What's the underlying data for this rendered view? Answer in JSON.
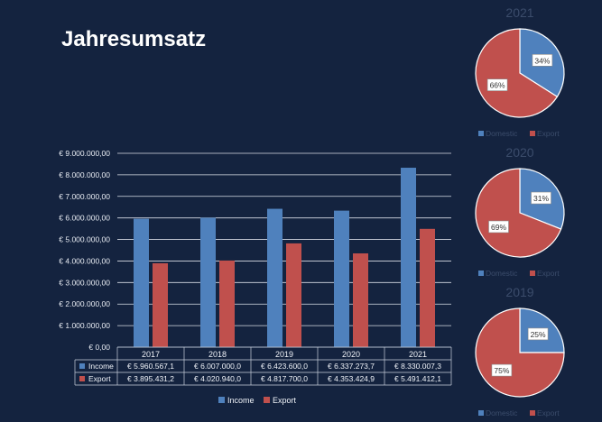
{
  "page": {
    "title": "Jahresumsatz"
  },
  "chart_data": [
    {
      "type": "bar",
      "title": "",
      "xlabel": "",
      "ylabel": "",
      "categories": [
        "2017",
        "2018",
        "2019",
        "2020",
        "2021"
      ],
      "ylim": [
        0,
        9000000
      ],
      "yticks": [
        "€ 0,00",
        "€ 1.000.000,00",
        "€ 2.000.000,00",
        "€ 3.000.000,00",
        "€ 4.000.000,00",
        "€ 5.000.000,00",
        "€ 6.000.000,00",
        "€ 7.000.000,00",
        "€ 8.000.000,00",
        "€ 9.000.000,00"
      ],
      "grid": true,
      "legend_position": "bottom",
      "series": [
        {
          "name": "Income",
          "color": "#4f81bd",
          "values": [
            5960567.1,
            6007000.0,
            6423600.0,
            6337273.7,
            8330007.3
          ],
          "table_labels": [
            "€ 5.960.567,1",
            "€ 6.007.000,0",
            "€ 6.423.600,0",
            "€ 6.337.273,7",
            "€ 8.330.007,3"
          ]
        },
        {
          "name": "Export",
          "color": "#c0504d",
          "values": [
            3895431.2,
            4020940.0,
            4817700.0,
            4353424.9,
            5491412.1
          ],
          "table_labels": [
            "€ 3.895.431,2",
            "€ 4.020.940,0",
            "€ 4.817.700,0",
            "€ 4.353.424,9",
            "€ 5.491.412,1"
          ]
        }
      ]
    },
    {
      "type": "pie",
      "title": "2021",
      "slices": [
        {
          "name": "Domestic",
          "value": 34,
          "label": "34%",
          "color": "#4f81bd"
        },
        {
          "name": "Export",
          "value": 66,
          "label": "66%",
          "color": "#c0504d"
        }
      ]
    },
    {
      "type": "pie",
      "title": "2020",
      "slices": [
        {
          "name": "Domestic",
          "value": 31,
          "label": "31%",
          "color": "#4f81bd"
        },
        {
          "name": "Export",
          "value": 69,
          "label": "69%",
          "color": "#c0504d"
        }
      ]
    },
    {
      "type": "pie",
      "title": "2019",
      "slices": [
        {
          "name": "Domestic",
          "value": 25,
          "label": "25%",
          "color": "#4f81bd"
        },
        {
          "name": "Export",
          "value": 75,
          "label": "75%",
          "color": "#c0504d"
        }
      ]
    }
  ]
}
